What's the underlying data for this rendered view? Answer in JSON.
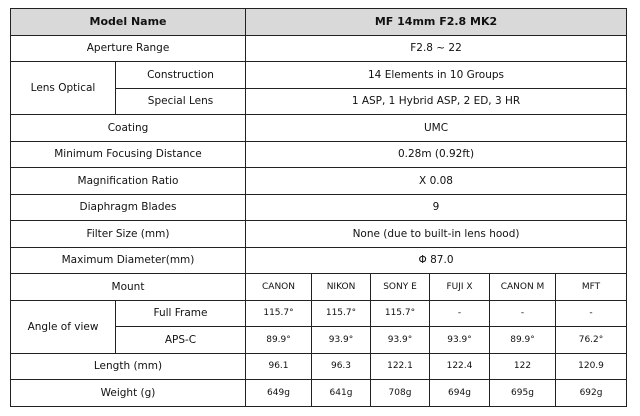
{
  "header": {
    "label": "Model Name",
    "value": "MF 14mm F2.8 MK2"
  },
  "rows": [
    {
      "label": "Aperture Range",
      "value": "F2.8 ~ 22"
    },
    {
      "label": "Coating",
      "value": "UMC"
    },
    {
      "label": "Minimum Focusing Distance",
      "value": "0.28m (0.92ft)"
    },
    {
      "label": "Magnification Ratio",
      "value": "X 0.08"
    },
    {
      "label": "Diaphragm Blades",
      "value": "9"
    },
    {
      "label": "Filter Size (mm)",
      "value": "None (due to built-in lens hood)"
    },
    {
      "label": "Maximum Diameter(mm)",
      "value": "Φ 87.0"
    }
  ],
  "lens_optical": {
    "label": "Lens Optical",
    "construction": {
      "label": "Construction",
      "value": "14 Elements in 10 Groups"
    },
    "special": {
      "label": "Special Lens",
      "value": "1 ASP, 1 Hybrid ASP, 2 ED, 3 HR"
    }
  },
  "mount": {
    "label": "Mount",
    "values": [
      "CANON",
      "NIKON",
      "SONY E",
      "FUJI X",
      "CANON M",
      "MFT"
    ]
  },
  "angle_of_view": {
    "label": "Angle of view",
    "full_frame": {
      "label": "Full Frame",
      "values": [
        "115.7°",
        "115.7°",
        "115.7°",
        "-",
        "-",
        "-"
      ]
    },
    "aps_c": {
      "label": "APS-C",
      "values": [
        "89.9°",
        "93.9°",
        "93.9°",
        "93.9°",
        "89.9°",
        "76.2°"
      ]
    }
  },
  "length": {
    "label": "Length (mm)",
    "values": [
      "96.1",
      "96.3",
      "122.1",
      "122.4",
      "122",
      "120.9"
    ]
  },
  "weight": {
    "label": "Weight (g)",
    "values": [
      "649g",
      "641g",
      "708g",
      "694g",
      "695g",
      "692g"
    ]
  }
}
